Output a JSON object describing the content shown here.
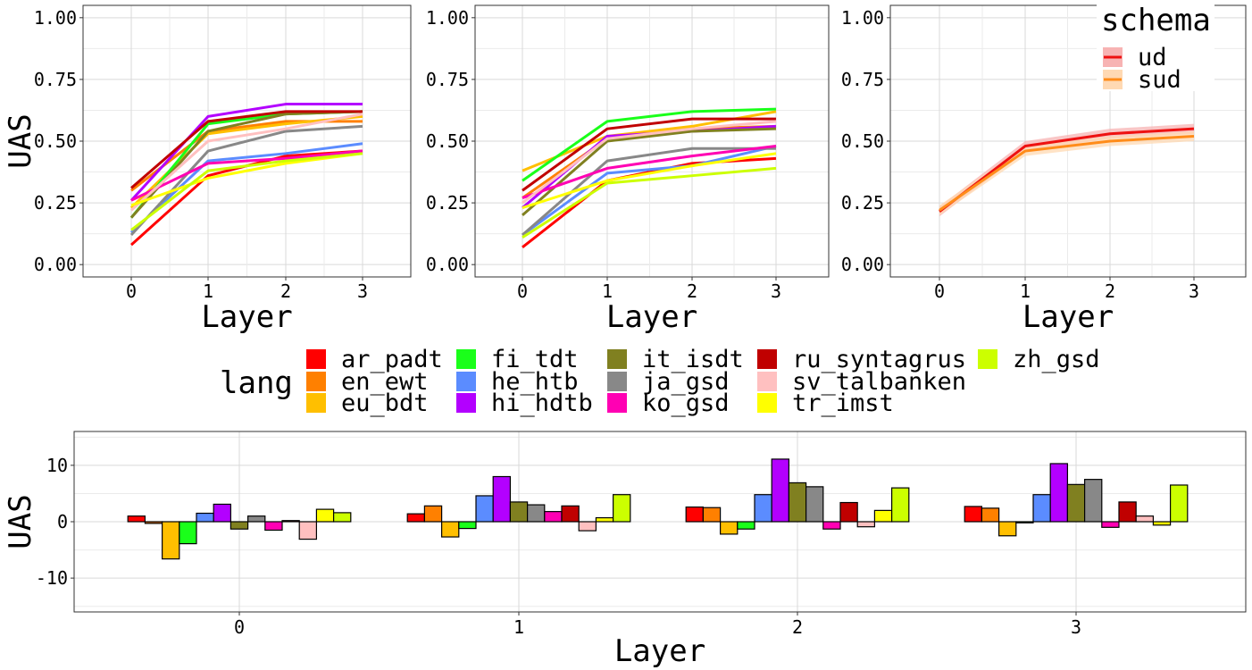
{
  "colors": {
    "ar_padt": "#ff0000",
    "en_ewt": "#ff8000",
    "eu_bdt": "#ffbf00",
    "fi_tdt": "#1aff1a",
    "he_htb": "#5b8cff",
    "hi_hdtb": "#b300ff",
    "it_isdt": "#808020",
    "ja_gsd": "#888888",
    "ko_gsd": "#ff00b3",
    "ru_syntagrus": "#c00000",
    "sv_talbanken": "#ffc0c0",
    "tr_imst": "#ffff00",
    "zh_gsd": "#ccff00",
    "ud": "#ee1111",
    "sud": "#ff8c1a"
  },
  "lang_legend": {
    "title": "lang",
    "items": [
      "ar_padt",
      "en_ewt",
      "eu_bdt",
      "fi_tdt",
      "he_htb",
      "hi_hdtb",
      "it_isdt",
      "ja_gsd",
      "ko_gsd",
      "ru_syntagrus",
      "sv_talbanken",
      "tr_imst",
      "zh_gsd"
    ]
  },
  "schema_legend": {
    "title": "schema",
    "items": [
      "ud",
      "sud"
    ]
  },
  "chart_data": [
    {
      "type": "line",
      "panel": "top-left",
      "xlabel": "Layer",
      "ylabel": "UAS",
      "x": [
        0,
        1,
        2,
        3
      ],
      "xticks": [
        "0",
        "1",
        "2",
        "3"
      ],
      "ylim": [
        -0.05,
        1.05
      ],
      "yticks": [
        "0.00",
        "0.25",
        "0.50",
        "0.75",
        "1.00"
      ],
      "grid": true,
      "series": [
        {
          "name": "ar_padt",
          "values": [
            0.08,
            0.36,
            0.44,
            0.46
          ]
        },
        {
          "name": "en_ewt",
          "values": [
            0.3,
            0.54,
            0.58,
            0.58
          ]
        },
        {
          "name": "eu_bdt",
          "values": [
            0.23,
            0.53,
            0.57,
            0.6
          ]
        },
        {
          "name": "fi_tdt",
          "values": [
            0.19,
            0.57,
            0.61,
            0.62
          ]
        },
        {
          "name": "he_htb",
          "values": [
            0.13,
            0.42,
            0.45,
            0.49
          ]
        },
        {
          "name": "hi_hdtb",
          "values": [
            0.26,
            0.6,
            0.65,
            0.65
          ]
        },
        {
          "name": "it_isdt",
          "values": [
            0.19,
            0.54,
            0.61,
            0.62
          ]
        },
        {
          "name": "ja_gsd",
          "values": [
            0.12,
            0.46,
            0.54,
            0.56
          ]
        },
        {
          "name": "ko_gsd",
          "values": [
            0.26,
            0.41,
            0.43,
            0.46
          ]
        },
        {
          "name": "ru_syntagrus",
          "values": [
            0.31,
            0.58,
            0.62,
            0.62
          ]
        },
        {
          "name": "sv_talbanken",
          "values": [
            0.22,
            0.5,
            0.55,
            0.61
          ]
        },
        {
          "name": "tr_imst",
          "values": [
            0.24,
            0.35,
            0.41,
            0.45
          ]
        },
        {
          "name": "zh_gsd",
          "values": [
            0.14,
            0.38,
            0.42,
            0.45
          ]
        }
      ]
    },
    {
      "type": "line",
      "panel": "top-middle",
      "xlabel": "Layer",
      "ylabel": "",
      "x": [
        0,
        1,
        2,
        3
      ],
      "xticks": [
        "0",
        "1",
        "2",
        "3"
      ],
      "ylim": [
        -0.05,
        1.05
      ],
      "yticks": [
        "0.00",
        "0.25",
        "0.50",
        "0.75",
        "1.00"
      ],
      "grid": true,
      "series": [
        {
          "name": "ar_padt",
          "values": [
            0.07,
            0.34,
            0.41,
            0.43
          ]
        },
        {
          "name": "en_ewt",
          "values": [
            0.27,
            0.51,
            0.55,
            0.56
          ]
        },
        {
          "name": "eu_bdt",
          "values": [
            0.38,
            0.52,
            0.56,
            0.62
          ]
        },
        {
          "name": "fi_tdt",
          "values": [
            0.34,
            0.58,
            0.62,
            0.63
          ]
        },
        {
          "name": "he_htb",
          "values": [
            0.12,
            0.37,
            0.4,
            0.48
          ]
        },
        {
          "name": "hi_hdtb",
          "values": [
            0.23,
            0.52,
            0.54,
            0.56
          ]
        },
        {
          "name": "it_isdt",
          "values": [
            0.2,
            0.5,
            0.54,
            0.55
          ]
        },
        {
          "name": "ja_gsd",
          "values": [
            0.12,
            0.42,
            0.47,
            0.47
          ]
        },
        {
          "name": "ko_gsd",
          "values": [
            0.27,
            0.39,
            0.44,
            0.48
          ]
        },
        {
          "name": "ru_syntagrus",
          "values": [
            0.3,
            0.55,
            0.59,
            0.59
          ]
        },
        {
          "name": "sv_talbanken",
          "values": [
            0.25,
            0.51,
            0.55,
            0.58
          ]
        },
        {
          "name": "tr_imst",
          "values": [
            0.23,
            0.34,
            0.4,
            0.45
          ]
        },
        {
          "name": "zh_gsd",
          "values": [
            0.11,
            0.33,
            0.36,
            0.39
          ]
        }
      ]
    },
    {
      "type": "line",
      "panel": "top-right",
      "xlabel": "Layer",
      "ylabel": "",
      "x": [
        0,
        1,
        2,
        3
      ],
      "xticks": [
        "0",
        "1",
        "2",
        "3"
      ],
      "ylim": [
        -0.05,
        1.05
      ],
      "yticks": [
        "0.00",
        "0.25",
        "0.50",
        "0.75",
        "1.00"
      ],
      "grid": true,
      "legend": "top-right",
      "series": [
        {
          "name": "ud",
          "values": [
            0.215,
            0.48,
            0.53,
            0.55
          ],
          "band": [
            0.02,
            0.02,
            0.02,
            0.02
          ]
        },
        {
          "name": "sud",
          "values": [
            0.22,
            0.46,
            0.5,
            0.52
          ],
          "band": [
            0.02,
            0.02,
            0.02,
            0.02
          ]
        }
      ]
    },
    {
      "type": "bar",
      "panel": "bottom",
      "xlabel": "Layer",
      "ylabel": "UAS",
      "categories": [
        "0",
        "1",
        "2",
        "3"
      ],
      "ylim": [
        -16,
        16
      ],
      "yticks": [
        "-10",
        "0",
        "10"
      ],
      "grid": true,
      "series": [
        {
          "name": "ar_padt",
          "values": [
            1.0,
            1.4,
            2.6,
            2.7
          ]
        },
        {
          "name": "en_ewt",
          "values": [
            -0.3,
            2.8,
            2.5,
            2.4
          ]
        },
        {
          "name": "eu_bdt",
          "values": [
            -6.6,
            -2.7,
            -2.2,
            -2.5
          ]
        },
        {
          "name": "fi_tdt",
          "values": [
            -3.9,
            -1.2,
            -1.3,
            -0.2
          ]
        },
        {
          "name": "he_htb",
          "values": [
            1.5,
            4.6,
            4.8,
            4.8
          ]
        },
        {
          "name": "hi_hdtb",
          "values": [
            3.1,
            8.0,
            11.1,
            10.3
          ]
        },
        {
          "name": "it_isdt",
          "values": [
            -1.3,
            3.5,
            6.9,
            6.6
          ]
        },
        {
          "name": "ja_gsd",
          "values": [
            1.0,
            3.0,
            6.2,
            7.5
          ]
        },
        {
          "name": "ko_gsd",
          "values": [
            -1.5,
            1.8,
            -1.3,
            -1.0
          ]
        },
        {
          "name": "ru_syntagrus",
          "values": [
            0.2,
            2.8,
            3.4,
            3.5
          ]
        },
        {
          "name": "sv_talbanken",
          "values": [
            -3.1,
            -1.6,
            -0.9,
            1.0
          ]
        },
        {
          "name": "tr_imst",
          "values": [
            2.2,
            0.7,
            2.0,
            -0.6
          ]
        },
        {
          "name": "zh_gsd",
          "values": [
            1.6,
            4.8,
            6.0,
            6.5
          ]
        }
      ]
    }
  ]
}
